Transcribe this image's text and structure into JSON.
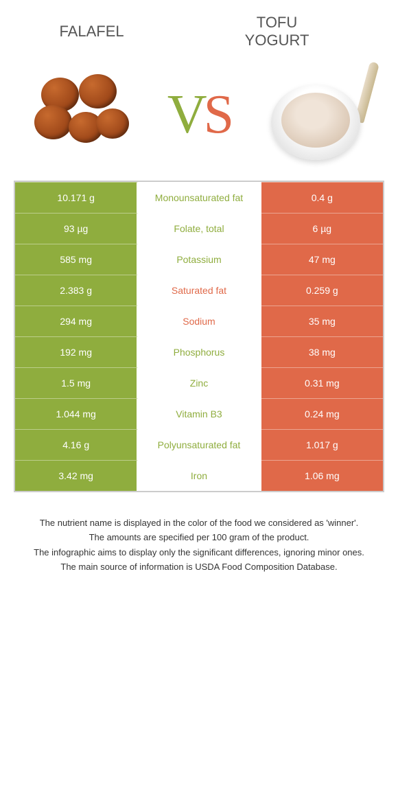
{
  "colors": {
    "left_bg": "#8fad3e",
    "right_bg": "#e06949",
    "left_text": "#8fad3e",
    "right_text": "#e06949"
  },
  "header": {
    "left_title": "FALAFEL",
    "right_title": "TOFU YOGURT"
  },
  "vs": {
    "v": "V",
    "s": "S"
  },
  "rows": [
    {
      "left": "10.171 g",
      "nutrient": "Monounsaturated fat",
      "right": "0.4 g",
      "winner": "left"
    },
    {
      "left": "93 µg",
      "nutrient": "Folate, total",
      "right": "6 µg",
      "winner": "left"
    },
    {
      "left": "585 mg",
      "nutrient": "Potassium",
      "right": "47 mg",
      "winner": "left"
    },
    {
      "left": "2.383 g",
      "nutrient": "Saturated fat",
      "right": "0.259 g",
      "winner": "right"
    },
    {
      "left": "294 mg",
      "nutrient": "Sodium",
      "right": "35 mg",
      "winner": "right"
    },
    {
      "left": "192 mg",
      "nutrient": "Phosphorus",
      "right": "38 mg",
      "winner": "left"
    },
    {
      "left": "1.5 mg",
      "nutrient": "Zinc",
      "right": "0.31 mg",
      "winner": "left"
    },
    {
      "left": "1.044 mg",
      "nutrient": "Vitamin B3",
      "right": "0.24 mg",
      "winner": "left"
    },
    {
      "left": "4.16 g",
      "nutrient": "Polyunsaturated fat",
      "right": "1.017 g",
      "winner": "left"
    },
    {
      "left": "3.42 mg",
      "nutrient": "Iron",
      "right": "1.06 mg",
      "winner": "left"
    }
  ],
  "footer": {
    "l1": "The nutrient name is displayed in the color of the food we considered as 'winner'.",
    "l2": "The amounts are specified per 100 gram of the product.",
    "l3": "The infographic aims to display only the significant differences, ignoring minor ones.",
    "l4": "The main source of information is USDA Food Composition Database."
  }
}
